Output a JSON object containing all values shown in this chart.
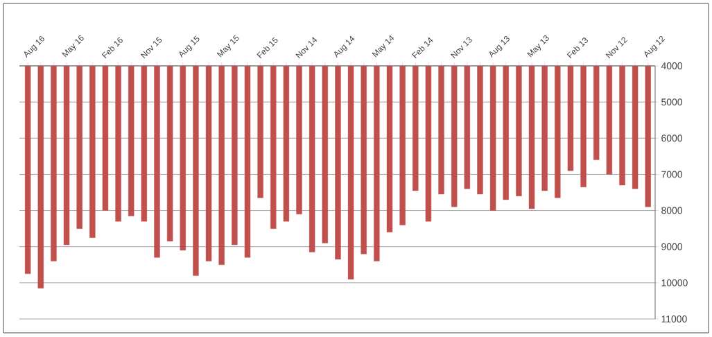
{
  "chart_data": {
    "type": "bar",
    "categories": [
      "Aug 16",
      null,
      null,
      "May 16",
      null,
      null,
      "Feb 16",
      null,
      null,
      "Nov 15",
      null,
      null,
      "Aug 15",
      null,
      null,
      "May 15",
      null,
      null,
      "Feb 15",
      null,
      null,
      "Nov 14",
      null,
      null,
      "Aug 14",
      null,
      null,
      "May 14",
      null,
      null,
      "Feb 14",
      null,
      null,
      "Nov 13",
      null,
      null,
      "Aug 13",
      null,
      null,
      "May 13",
      null,
      null,
      "Feb 13",
      null,
      null,
      "Nov 12",
      null,
      null,
      "Aug 12"
    ],
    "values": [
      9750,
      10150,
      9400,
      8950,
      8500,
      8750,
      8000,
      8300,
      8150,
      8300,
      9300,
      8850,
      9100,
      9800,
      9400,
      9500,
      8950,
      9300,
      7650,
      8500,
      8300,
      8100,
      9150,
      8900,
      9350,
      9900,
      9200,
      9400,
      8600,
      8400,
      7450,
      8300,
      7550,
      7900,
      7400,
      7550,
      8000,
      7700,
      7600,
      7950,
      7450,
      7650,
      6900,
      7350,
      6600,
      7000,
      7300,
      7400,
      7900
    ],
    "color": "#c0504d",
    "ylim": [
      11000,
      4000
    ],
    "yticks": [
      4000,
      5000,
      6000,
      7000,
      8000,
      9000,
      10000,
      11000
    ],
    "grid": "y"
  }
}
